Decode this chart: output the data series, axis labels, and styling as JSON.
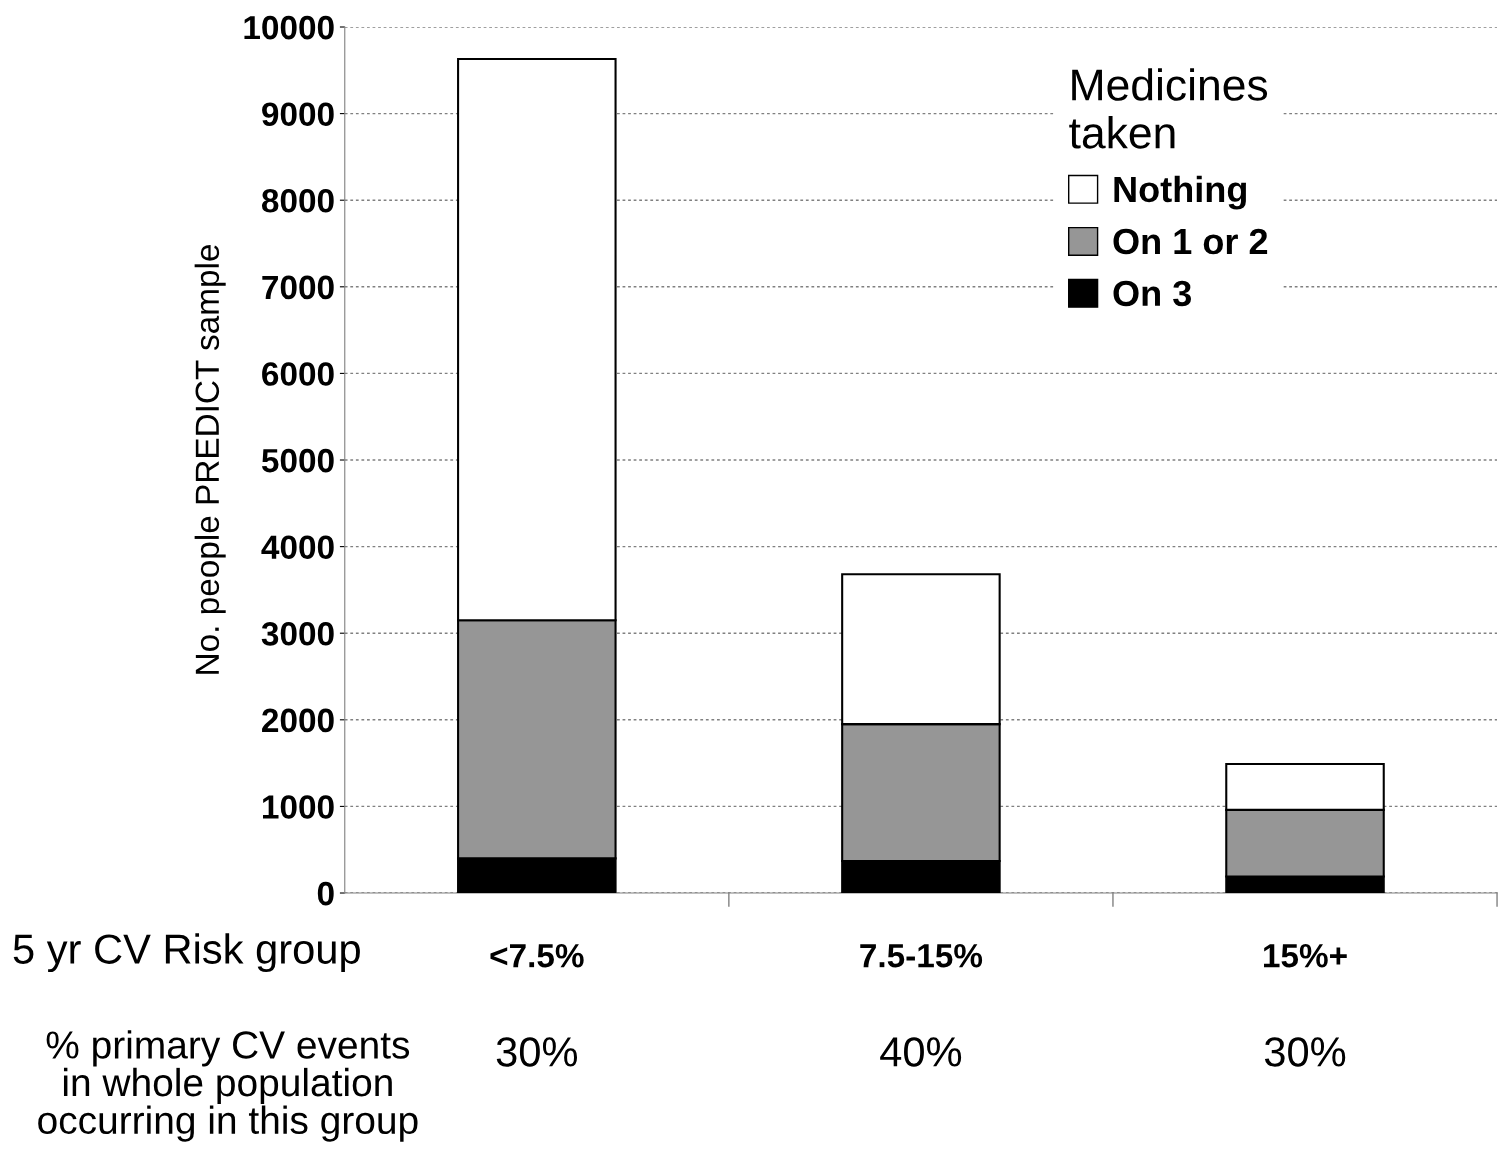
{
  "chart_data": {
    "type": "bar",
    "stacked": true,
    "categories": [
      "<7.5%",
      "7.5-15%",
      "15%+"
    ],
    "series": [
      {
        "name": "On 3",
        "color": "#000000",
        "values": [
          400,
          370,
          190
        ]
      },
      {
        "name": "On 1 or 2",
        "color": "#969696",
        "values": [
          2750,
          1580,
          770
        ]
      },
      {
        "name": "Nothing",
        "color": "#ffffff",
        "values": [
          6480,
          1730,
          530
        ]
      }
    ],
    "ylabel": "No. people PREDICT sample",
    "xlabel": "5 yr CV Risk group",
    "legend_title": "Medicines\ntaken",
    "legend": "top right",
    "ylim": [
      0,
      10000
    ],
    "yticks": [
      0,
      1000,
      2000,
      3000,
      4000,
      5000,
      6000,
      7000,
      8000,
      9000,
      10000
    ],
    "grid": "y",
    "annotations": [
      "% primary CV events\nin whole population\noccurring in this group",
      "30%",
      "40%",
      "30%"
    ]
  }
}
